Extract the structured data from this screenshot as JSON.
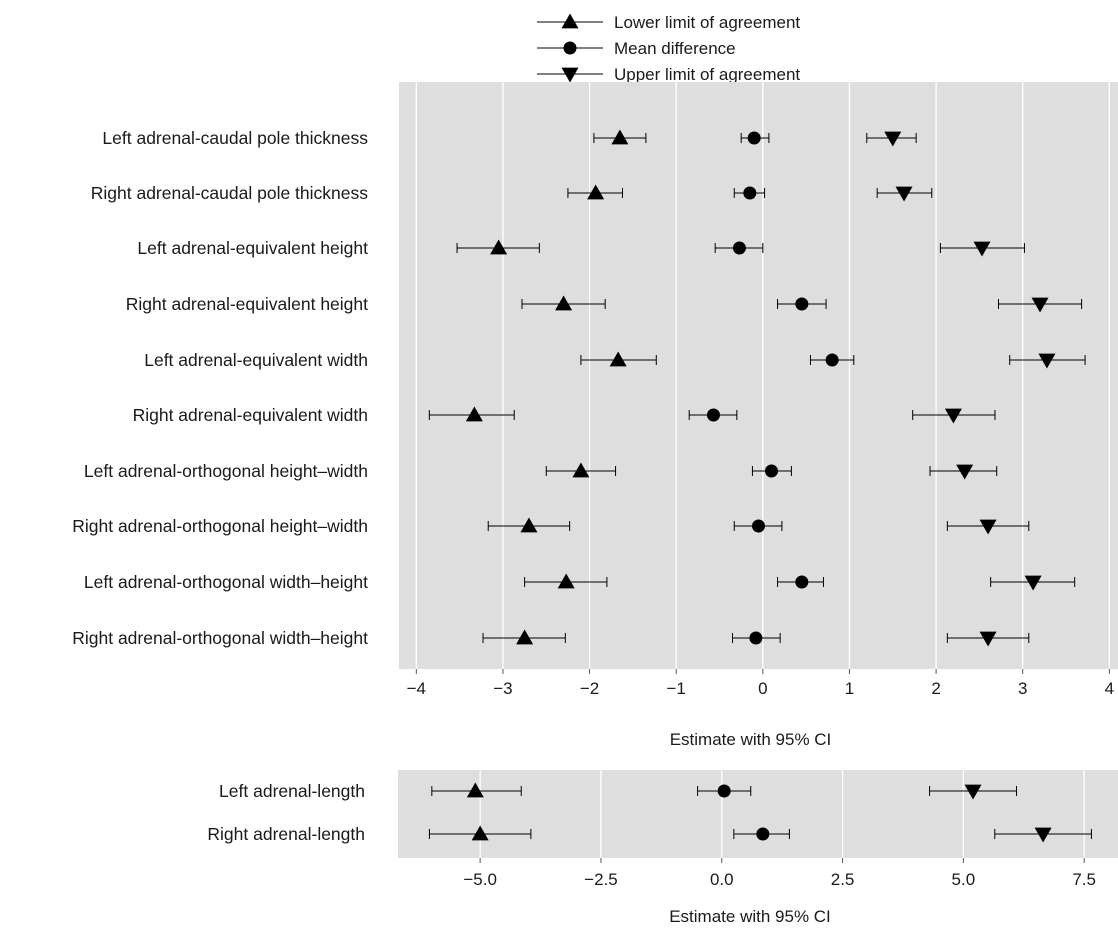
{
  "legend": {
    "items": [
      {
        "label": "Lower limit of agreement",
        "marker": "triangle-up"
      },
      {
        "label": "Mean difference",
        "marker": "circle"
      },
      {
        "label": "Upper limit of agreement",
        "marker": "triangle-down"
      }
    ],
    "placement": "top-center"
  },
  "colors": {
    "panel_bg": "#dedede",
    "grid": "#ffffff",
    "ink": "#000000"
  },
  "chart_data": [
    {
      "type": "scatter",
      "subtype": "forest-plot",
      "xlabel": "Estimate with 95% CI",
      "xlim": [
        -4.2,
        4.1
      ],
      "xticks": [
        -4,
        -3,
        -2,
        -1,
        0,
        1,
        2,
        3,
        4
      ],
      "xtick_labels": [
        "−4",
        "−3",
        "−2",
        "−1",
        "0",
        "1",
        "2",
        "3",
        "4"
      ],
      "grid": true,
      "categories": [
        "Left adrenal-caudal pole thickness",
        "Right adrenal-caudal pole thickness",
        "Left adrenal-equivalent height",
        "Right adrenal-equivalent height",
        "Left adrenal-equivalent width",
        "Right adrenal-equivalent width",
        "Left adrenal-orthogonal height–width",
        "Right adrenal-orthogonal height–width",
        "Left adrenal-orthogonal width–height",
        "Right adrenal-orthogonal width–height"
      ],
      "series": [
        {
          "name": "Lower limit of agreement",
          "marker": "triangle-up",
          "values": [
            -1.65,
            -1.93,
            -3.05,
            -2.3,
            -1.67,
            -3.33,
            -2.1,
            -2.7,
            -2.27,
            -2.75
          ],
          "ci_low": [
            -1.95,
            -2.25,
            -3.53,
            -2.78,
            -2.1,
            -3.85,
            -2.5,
            -3.17,
            -2.75,
            -3.23
          ],
          "ci_high": [
            -1.35,
            -1.62,
            -2.58,
            -1.82,
            -1.23,
            -2.87,
            -1.7,
            -2.23,
            -1.8,
            -2.28
          ]
        },
        {
          "name": "Mean difference",
          "marker": "circle",
          "values": [
            -0.1,
            -0.15,
            -0.27,
            0.45,
            0.8,
            -0.57,
            0.1,
            -0.05,
            0.45,
            -0.08
          ],
          "ci_low": [
            -0.25,
            -0.33,
            -0.55,
            0.17,
            0.55,
            -0.85,
            -0.12,
            -0.33,
            0.17,
            -0.35
          ],
          "ci_high": [
            0.07,
            0.02,
            0.0,
            0.73,
            1.05,
            -0.3,
            0.33,
            0.22,
            0.7,
            0.2
          ]
        },
        {
          "name": "Upper limit of agreement",
          "marker": "triangle-down",
          "values": [
            1.5,
            1.63,
            2.53,
            3.2,
            3.28,
            2.2,
            2.33,
            2.6,
            3.12,
            2.6
          ],
          "ci_low": [
            1.2,
            1.32,
            2.05,
            2.72,
            2.85,
            1.73,
            1.93,
            2.13,
            2.63,
            2.13
          ],
          "ci_high": [
            1.77,
            1.95,
            3.02,
            3.68,
            3.72,
            2.68,
            2.7,
            3.07,
            3.6,
            3.07
          ]
        }
      ]
    },
    {
      "type": "scatter",
      "subtype": "forest-plot",
      "xlabel": "Estimate with 95% CI",
      "xlim": [
        -6.7,
        8.2
      ],
      "xticks": [
        -5,
        -2.5,
        0,
        2.5,
        5,
        7.5
      ],
      "xtick_labels": [
        "−5.0",
        "−2.5",
        "0.0",
        "2.5",
        "5.0",
        "7.5"
      ],
      "grid": true,
      "categories": [
        "Left adrenal-length",
        "Right adrenal-length"
      ],
      "series": [
        {
          "name": "Lower limit of agreement",
          "marker": "triangle-up",
          "values": [
            -5.1,
            -5.0
          ],
          "ci_low": [
            -6.0,
            -6.05
          ],
          "ci_high": [
            -4.15,
            -3.95
          ]
        },
        {
          "name": "Mean difference",
          "marker": "circle",
          "values": [
            0.05,
            0.85
          ],
          "ci_low": [
            -0.5,
            0.25
          ],
          "ci_high": [
            0.6,
            1.4
          ]
        },
        {
          "name": "Upper limit of agreement",
          "marker": "triangle-down",
          "values": [
            5.2,
            6.65
          ],
          "ci_low": [
            4.3,
            5.65
          ],
          "ci_high": [
            6.1,
            7.65
          ]
        }
      ]
    }
  ]
}
